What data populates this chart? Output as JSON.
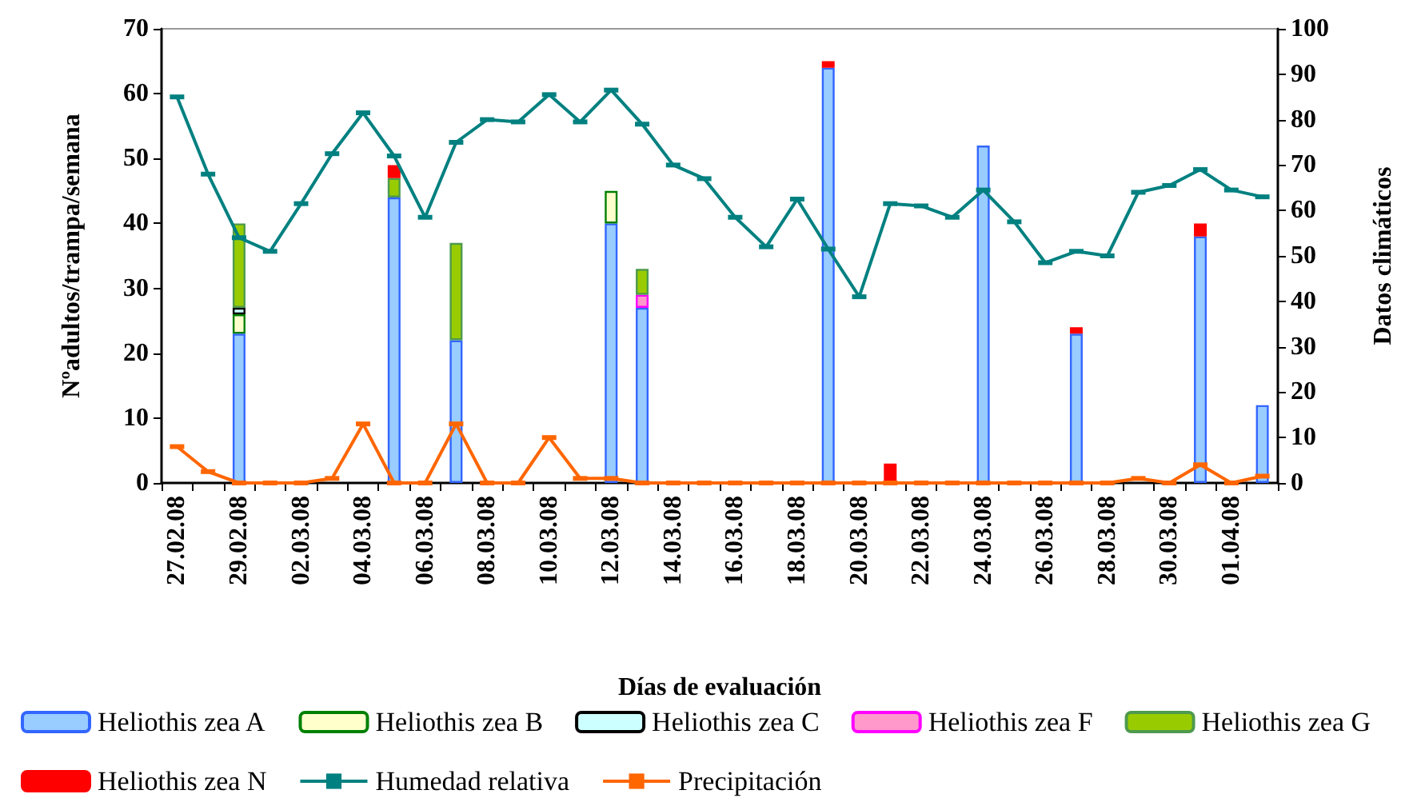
{
  "chart_data": {
    "type": "bar",
    "stacked": true,
    "xlabel": "Días de evaluación",
    "ylabel": "Nºadultos/trampa/semana",
    "y2label": "Datos climáticos",
    "categories": [
      "27.02.08",
      null,
      "29.02.08",
      null,
      "02.03.08",
      null,
      "04.03.08",
      null,
      "06.03.08",
      null,
      "08.03.08",
      null,
      "10.03.08",
      null,
      "12.03.08",
      null,
      "14.03.08",
      null,
      "16.03.08",
      null,
      "18.03.08",
      null,
      "20.03.08",
      null,
      "22.03.08",
      null,
      "24.03.08",
      null,
      "26.03.08",
      null,
      "28.03.08",
      null,
      "30.03.08",
      null,
      "01.04.08",
      null
    ],
    "ylim": [
      0,
      70
    ],
    "yticks": [
      0,
      10,
      20,
      30,
      40,
      50,
      60,
      70
    ],
    "y2lim": [
      0,
      100
    ],
    "y2ticks": [
      0,
      10,
      20,
      30,
      40,
      50,
      60,
      70,
      80,
      90,
      100
    ],
    "grid": false,
    "legend": "bottom",
    "marker": "square",
    "series": [
      {
        "name": "Heliothis zea A",
        "color": "#99ccff",
        "values": [
          null,
          null,
          23,
          null,
          null,
          null,
          null,
          44,
          null,
          22,
          null,
          null,
          null,
          null,
          40,
          27,
          null,
          null,
          null,
          null,
          null,
          64,
          null,
          null,
          null,
          null,
          52,
          null,
          null,
          23,
          null,
          null,
          null,
          38,
          null,
          12
        ]
      },
      {
        "name": "Heliothis zea B",
        "color": "#ffffcc",
        "values": [
          null,
          null,
          3,
          null,
          null,
          null,
          null,
          null,
          null,
          null,
          null,
          null,
          null,
          null,
          5,
          null,
          null,
          null,
          null,
          null,
          null,
          null,
          null,
          null,
          null,
          null,
          null,
          null,
          null,
          null,
          null,
          null,
          null,
          null,
          null,
          null
        ]
      },
      {
        "name": "Heliothis zea C",
        "color": "#ccffff",
        "values": [
          null,
          null,
          1,
          null,
          null,
          null,
          null,
          null,
          null,
          null,
          null,
          null,
          null,
          null,
          null,
          null,
          null,
          null,
          null,
          null,
          null,
          null,
          null,
          null,
          null,
          null,
          null,
          null,
          null,
          null,
          null,
          null,
          null,
          null,
          null,
          null
        ]
      },
      {
        "name": "Heliothis zea F",
        "color": "#ff99cc",
        "values": [
          null,
          null,
          null,
          null,
          null,
          null,
          null,
          null,
          null,
          null,
          null,
          null,
          null,
          null,
          null,
          2,
          null,
          null,
          null,
          null,
          null,
          null,
          null,
          null,
          null,
          null,
          null,
          null,
          null,
          null,
          null,
          null,
          null,
          null,
          null,
          null
        ]
      },
      {
        "name": "Heliothis zea G",
        "color": "#99cc00",
        "values": [
          null,
          null,
          13,
          null,
          null,
          null,
          null,
          3,
          null,
          15,
          null,
          null,
          null,
          null,
          null,
          4,
          null,
          null,
          null,
          null,
          null,
          null,
          null,
          null,
          null,
          null,
          null,
          null,
          null,
          null,
          null,
          null,
          null,
          null,
          null,
          null
        ]
      },
      {
        "name": "Heliothis zea N",
        "color": "#ff0000",
        "values": [
          null,
          null,
          null,
          null,
          null,
          null,
          null,
          2,
          null,
          null,
          null,
          null,
          null,
          null,
          null,
          null,
          null,
          null,
          null,
          null,
          null,
          1,
          null,
          3,
          null,
          null,
          null,
          null,
          null,
          1,
          null,
          null,
          null,
          2,
          null,
          null
        ]
      },
      {
        "name": "Humedad relativa",
        "type": "line",
        "axis": "y2",
        "color": "#008080",
        "values": [
          85,
          68,
          54,
          51,
          61.5,
          72.5,
          81.5,
          72,
          58.5,
          75,
          80,
          79.5,
          85.5,
          79.5,
          86.5,
          79,
          70,
          67,
          58.5,
          52,
          62.5,
          51.5,
          41,
          61.5,
          61,
          58.5,
          64.5,
          57.5,
          48.5,
          51,
          50,
          64,
          65.5,
          69,
          64.5,
          63
        ]
      },
      {
        "name": "Precipitación",
        "type": "line",
        "axis": "y2",
        "color": "#ff6600",
        "values": [
          8,
          2.5,
          0,
          0,
          0,
          1,
          13,
          0,
          0,
          13,
          0,
          0,
          10,
          1,
          1,
          0,
          0,
          0,
          0,
          0,
          0,
          0,
          0,
          0,
          0,
          0,
          0,
          0,
          0,
          0,
          0,
          1,
          0,
          4,
          0,
          1.5
        ]
      }
    ]
  }
}
